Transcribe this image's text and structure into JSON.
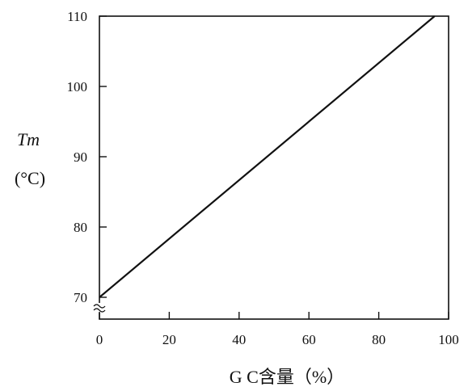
{
  "chart_data": {
    "type": "line",
    "title": "",
    "xlabel": "G C含量（%）",
    "ylabel": "Tm",
    "ylabel_unit": "(°C)",
    "xlim": [
      0,
      100
    ],
    "ylim": [
      70,
      110
    ],
    "y_axis_break": true,
    "grid": false,
    "x_ticks": [
      0,
      20,
      40,
      60,
      80,
      100
    ],
    "y_ticks": [
      70,
      80,
      90,
      100,
      110
    ],
    "series": [
      {
        "values": [
          {
            "x": 0,
            "y": 70
          },
          {
            "x": 96,
            "y": 110
          }
        ]
      }
    ],
    "colors": {
      "line": "#111111",
      "axis": "#111111"
    }
  }
}
